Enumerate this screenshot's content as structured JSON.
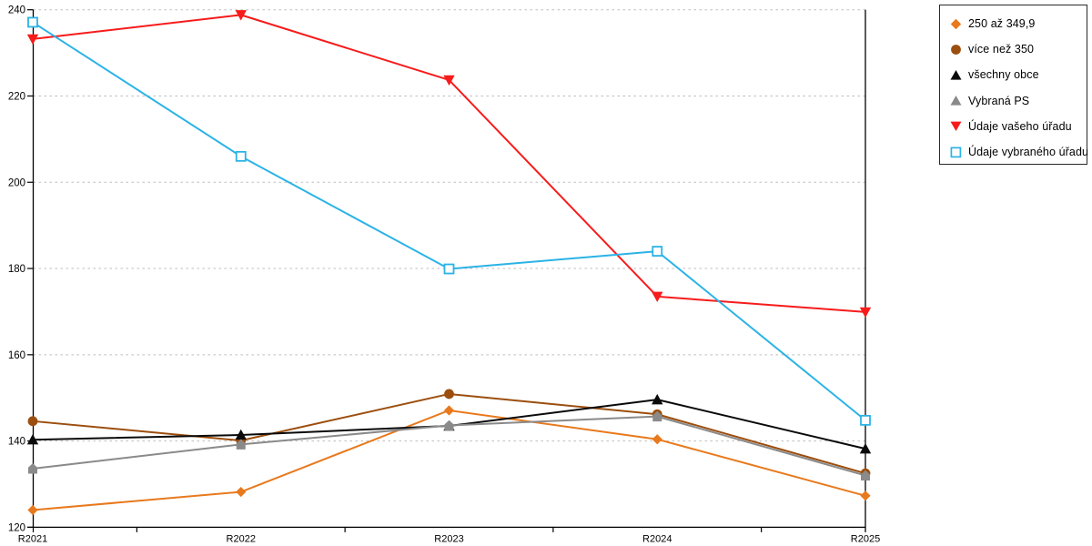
{
  "chart_data": {
    "type": "line",
    "title": "",
    "xlabel": "",
    "ylabel": "",
    "categories": [
      "R2021",
      "R2022",
      "R2023",
      "R2024",
      "R2025"
    ],
    "series": [
      {
        "name": "250 až 349,9",
        "color": "#E8791C",
        "marker": "diamond",
        "values": [
          124.0,
          128.2,
          147.1,
          140.4,
          127.3
        ]
      },
      {
        "name": "více než 350",
        "color": "#9C4E0E",
        "marker": "circle",
        "values": [
          144.6,
          140.1,
          150.9,
          146.2,
          132.5
        ]
      },
      {
        "name": "všechny obce",
        "color": "#0A0A0A",
        "marker": "triangle-up",
        "values": [
          140.3,
          141.4,
          143.5,
          149.6,
          138.2
        ]
      },
      {
        "name": "Vybraná PS",
        "color": "#8A8A8A",
        "marker": "pentagon",
        "legend_marker": "triangle-up",
        "values": [
          133.6,
          139.2,
          143.6,
          145.7,
          132.0
        ]
      },
      {
        "name": "Údaje vašeho úřadu",
        "color": "#F71B1B",
        "marker": "triangle-down",
        "values": [
          233.2,
          238.8,
          223.7,
          173.5,
          169.9
        ]
      },
      {
        "name": "Údaje vybraného úřadu",
        "color": "#2BB3E6",
        "marker": "square-open",
        "values": [
          237.1,
          206.0,
          179.9,
          184.0,
          144.8
        ]
      }
    ],
    "ylim": [
      120,
      240
    ],
    "ytick_step": 20,
    "ytick_labels": [
      "240",
      "220",
      "200",
      "180",
      "160",
      "140",
      "120"
    ],
    "grid": "horizontal dotted",
    "legend_position": "top-right"
  },
  "colors": {
    "background": "#FFFFFF",
    "axis": "#000000",
    "gridline": "#BDBDBD",
    "legend_border": "#2A2A2A",
    "tick_label": "#000000"
  }
}
